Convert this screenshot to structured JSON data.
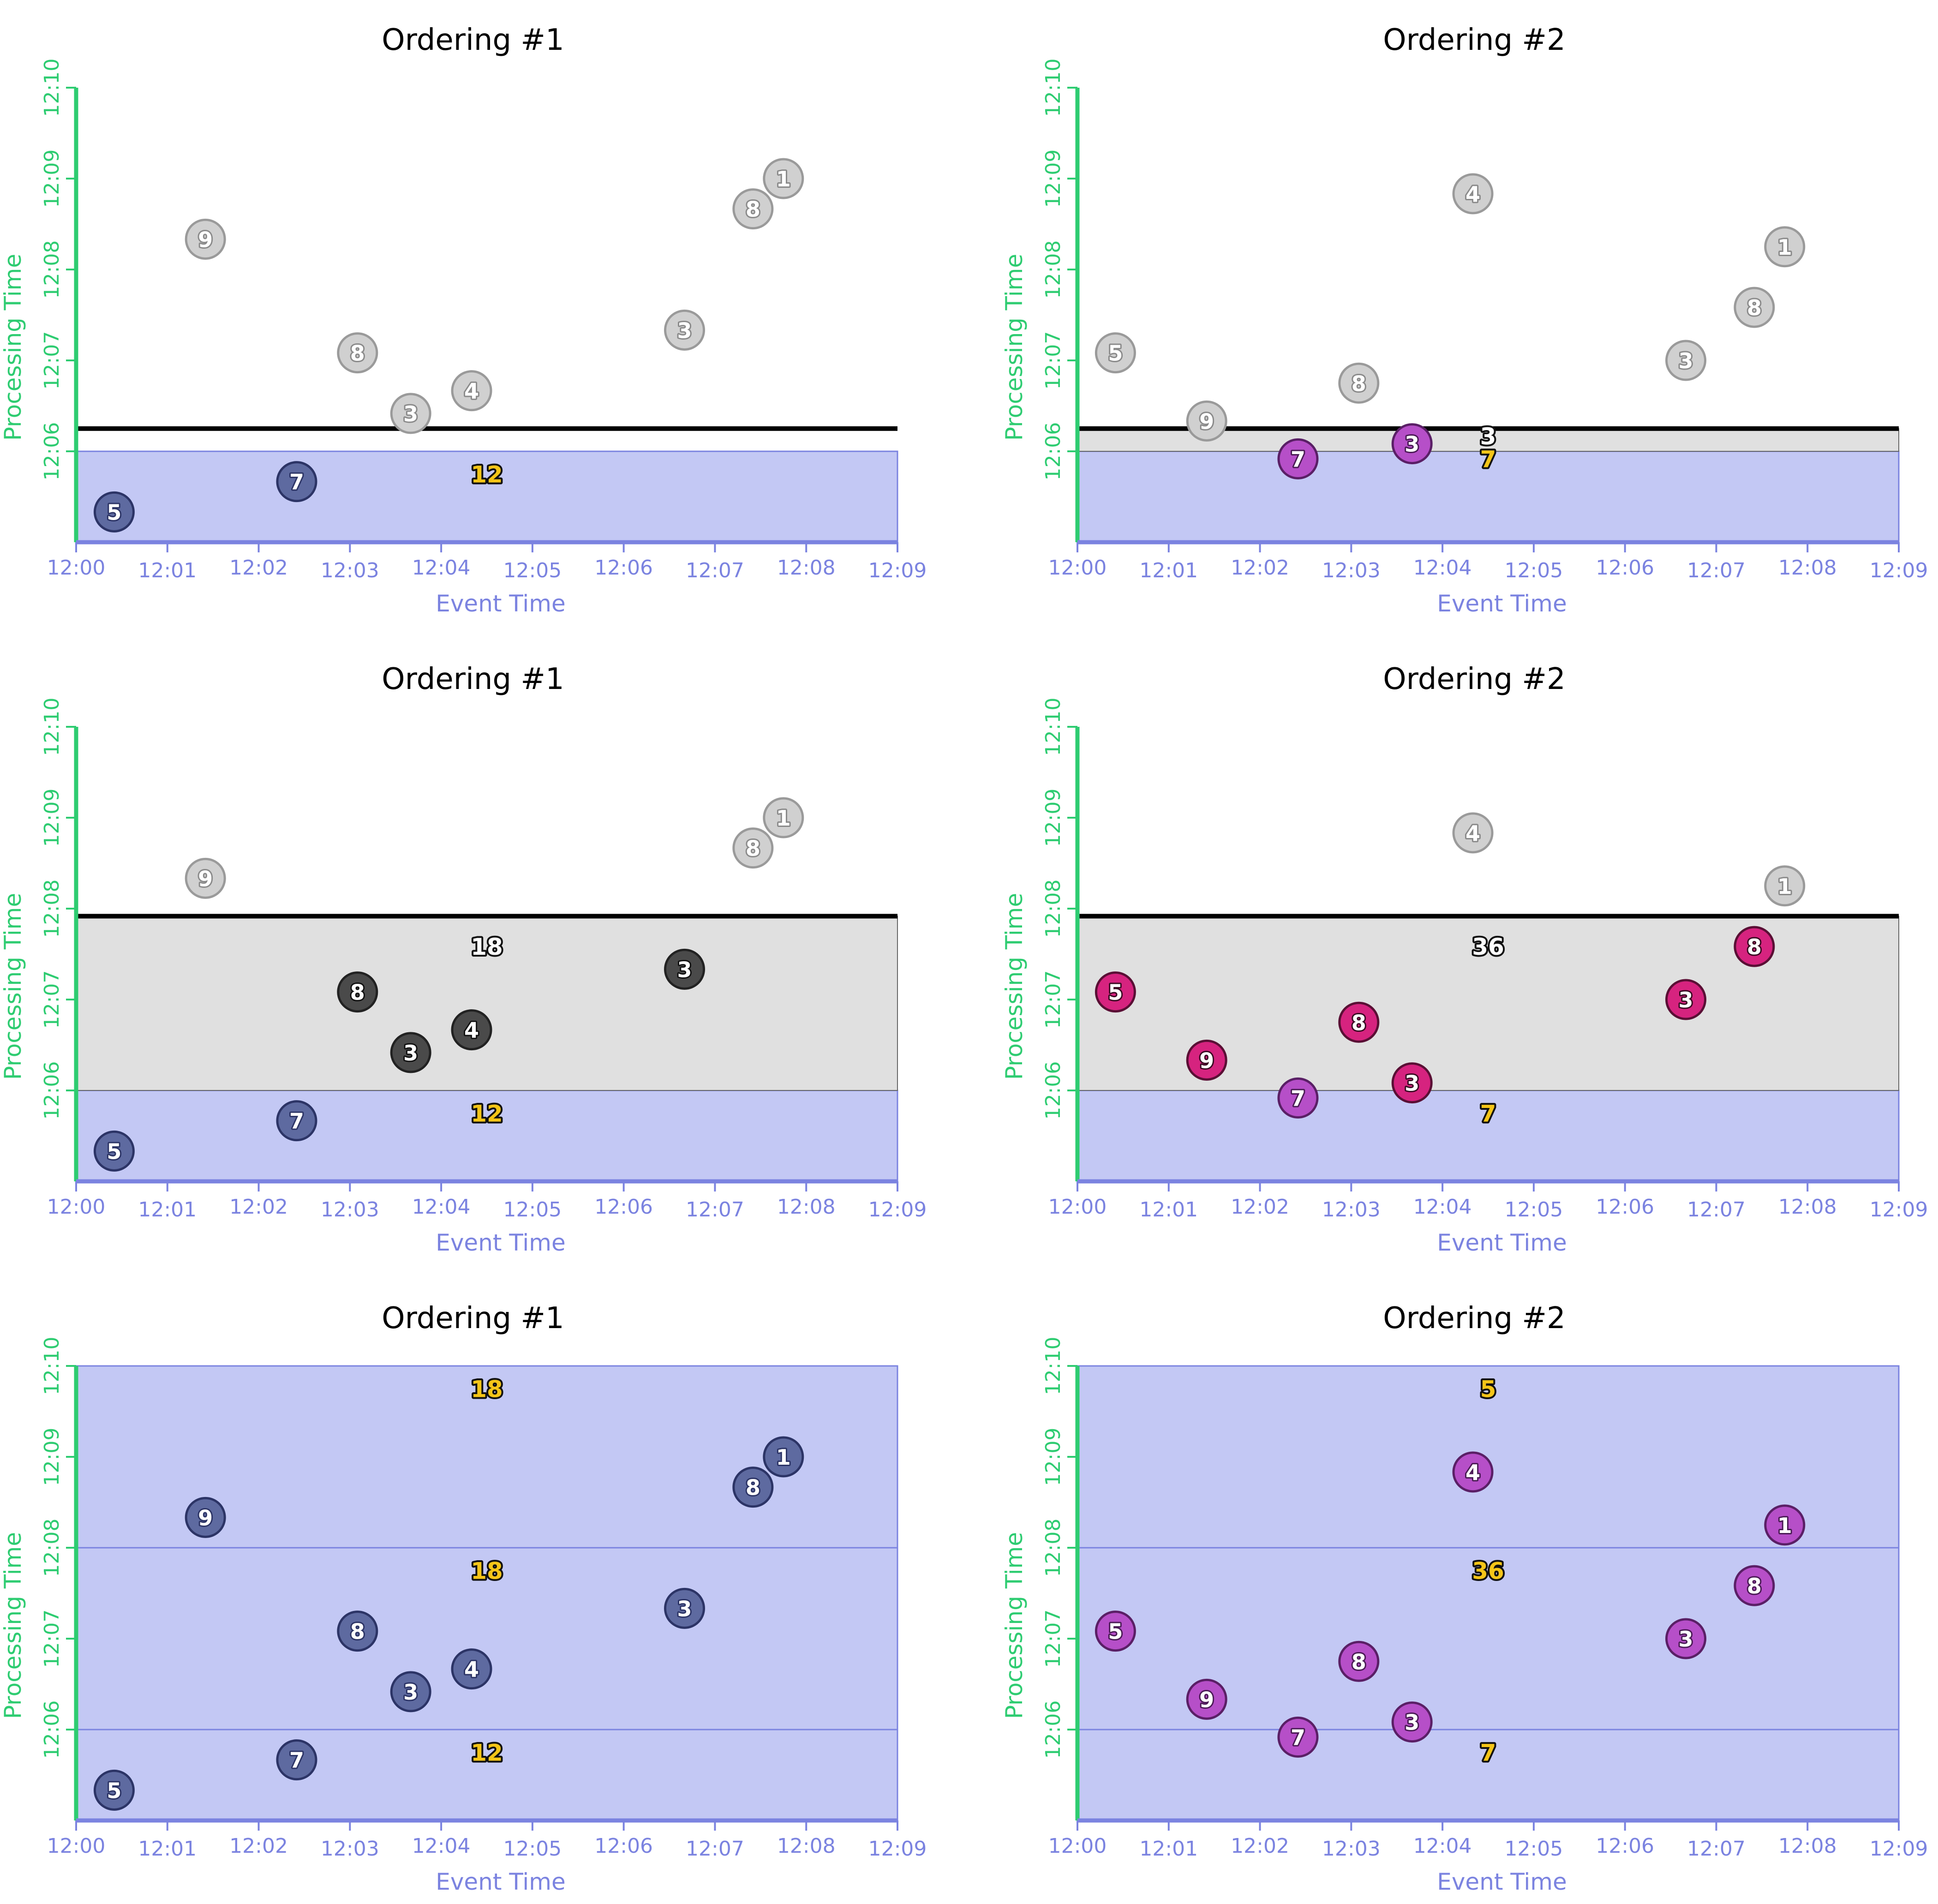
{
  "colors": {
    "pane": "#c3c8f4",
    "pane_line": "#7b83e0",
    "inflight": "#e0e0e0",
    "x_axis": "#7b83e0",
    "y_axis": "#2ecc71",
    "watermark": "#000000",
    "sum_text": "#f5c518",
    "sum_text_light": "#ffffff",
    "point_gray": "#d0d0d0",
    "point_gray_text": "#ffffff",
    "point_dark": "#4a4a4a",
    "point_pane": "#5e6aa0",
    "point_purple": "#b64fc8",
    "point_magenta": "#d6237f"
  },
  "chart_data": [
    {
      "type": "scatter",
      "title": "Ordering #1",
      "xlabel": "Event Time",
      "ylabel": "Processing Time",
      "x_ticks": [
        "12:00",
        "12:01",
        "12:02",
        "12:03",
        "12:04",
        "12:05",
        "12:06",
        "12:07",
        "12:08",
        "12:09"
      ],
      "y_ticks": [
        "12:06",
        "12:07",
        "12:08",
        "12:09",
        "12:10"
      ],
      "xlim": [
        "12:00",
        "12:09"
      ],
      "ylim": [
        "12:05",
        "12:10"
      ],
      "watermark": "12:06:15",
      "panes_fired": [
        {
          "from": "12:05",
          "to": "12:06"
        }
      ],
      "inflight": null,
      "points": [
        {
          "label": "5",
          "x": "12:00:25",
          "y": "12:05:20",
          "style": "pane"
        },
        {
          "label": "9",
          "x": "12:01:25",
          "y": "12:08:20",
          "style": "gray"
        },
        {
          "label": "7",
          "x": "12:02:25",
          "y": "12:05:40",
          "style": "pane"
        },
        {
          "label": "8",
          "x": "12:03:05",
          "y": "12:07:05",
          "style": "gray"
        },
        {
          "label": "3",
          "x": "12:03:40",
          "y": "12:06:25",
          "style": "gray"
        },
        {
          "label": "4",
          "x": "12:04:20",
          "y": "12:06:40",
          "style": "gray"
        },
        {
          "label": "3",
          "x": "12:06:40",
          "y": "12:07:20",
          "style": "gray"
        },
        {
          "label": "8",
          "x": "12:07:25",
          "y": "12:08:40",
          "style": "gray"
        },
        {
          "label": "1",
          "x": "12:07:45",
          "y": "12:09:00",
          "style": "gray"
        }
      ],
      "sums": [
        {
          "label": "12",
          "x": "12:04:30",
          "y": "12:05:45",
          "style": "yellow"
        }
      ]
    },
    {
      "type": "scatter",
      "title": "Ordering #2",
      "xlabel": "Event Time",
      "ylabel": "Processing Time",
      "x_ticks": [
        "12:00",
        "12:01",
        "12:02",
        "12:03",
        "12:04",
        "12:05",
        "12:06",
        "12:07",
        "12:08",
        "12:09"
      ],
      "y_ticks": [
        "12:06",
        "12:07",
        "12:08",
        "12:09",
        "12:10"
      ],
      "xlim": [
        "12:00",
        "12:09"
      ],
      "ylim": [
        "12:05",
        "12:10"
      ],
      "watermark": "12:06:15",
      "panes_fired": [
        {
          "from": "12:05",
          "to": "12:06"
        }
      ],
      "inflight": {
        "from": "12:06",
        "to": "12:06:15"
      },
      "points": [
        {
          "label": "5",
          "x": "12:00:25",
          "y": "12:07:05",
          "style": "gray"
        },
        {
          "label": "9",
          "x": "12:01:25",
          "y": "12:06:20",
          "style": "gray"
        },
        {
          "label": "7",
          "x": "12:02:25",
          "y": "12:05:55",
          "style": "purple"
        },
        {
          "label": "8",
          "x": "12:03:05",
          "y": "12:06:45",
          "style": "gray"
        },
        {
          "label": "3",
          "x": "12:03:40",
          "y": "12:06:05",
          "style": "purple"
        },
        {
          "label": "4",
          "x": "12:04:20",
          "y": "12:08:50",
          "style": "gray"
        },
        {
          "label": "3",
          "x": "12:06:40",
          "y": "12:07:00",
          "style": "gray"
        },
        {
          "label": "8",
          "x": "12:07:25",
          "y": "12:07:35",
          "style": "gray"
        },
        {
          "label": "1",
          "x": "12:07:45",
          "y": "12:08:15",
          "style": "gray"
        }
      ],
      "sums": [
        {
          "label": "3",
          "x": "12:04:30",
          "y": "12:06:10",
          "style": "white"
        },
        {
          "label": "7",
          "x": "12:04:30",
          "y": "12:05:55",
          "style": "yellow"
        }
      ]
    },
    {
      "type": "scatter",
      "title": "Ordering #1",
      "xlabel": "Event Time",
      "ylabel": "Processing Time",
      "x_ticks": [
        "12:00",
        "12:01",
        "12:02",
        "12:03",
        "12:04",
        "12:05",
        "12:06",
        "12:07",
        "12:08",
        "12:09"
      ],
      "y_ticks": [
        "12:06",
        "12:07",
        "12:08",
        "12:09",
        "12:10"
      ],
      "xlim": [
        "12:00",
        "12:09"
      ],
      "ylim": [
        "12:05",
        "12:10"
      ],
      "watermark": "12:07:55",
      "panes_fired": [
        {
          "from": "12:05",
          "to": "12:06"
        }
      ],
      "inflight": {
        "from": "12:06",
        "to": "12:07:55"
      },
      "points": [
        {
          "label": "5",
          "x": "12:00:25",
          "y": "12:05:20",
          "style": "pane"
        },
        {
          "label": "9",
          "x": "12:01:25",
          "y": "12:08:20",
          "style": "gray"
        },
        {
          "label": "7",
          "x": "12:02:25",
          "y": "12:05:40",
          "style": "pane"
        },
        {
          "label": "8",
          "x": "12:03:05",
          "y": "12:07:05",
          "style": "dark"
        },
        {
          "label": "3",
          "x": "12:03:40",
          "y": "12:06:25",
          "style": "dark"
        },
        {
          "label": "4",
          "x": "12:04:20",
          "y": "12:06:40",
          "style": "dark"
        },
        {
          "label": "3",
          "x": "12:06:40",
          "y": "12:07:20",
          "style": "dark"
        },
        {
          "label": "8",
          "x": "12:07:25",
          "y": "12:08:40",
          "style": "gray"
        },
        {
          "label": "1",
          "x": "12:07:45",
          "y": "12:09:00",
          "style": "gray"
        }
      ],
      "sums": [
        {
          "label": "18",
          "x": "12:04:30",
          "y": "12:07:35",
          "style": "white"
        },
        {
          "label": "12",
          "x": "12:04:30",
          "y": "12:05:45",
          "style": "yellow"
        }
      ]
    },
    {
      "type": "scatter",
      "title": "Ordering #2",
      "xlabel": "Event Time",
      "ylabel": "Processing Time",
      "x_ticks": [
        "12:00",
        "12:01",
        "12:02",
        "12:03",
        "12:04",
        "12:05",
        "12:06",
        "12:07",
        "12:08",
        "12:09"
      ],
      "y_ticks": [
        "12:06",
        "12:07",
        "12:08",
        "12:09",
        "12:10"
      ],
      "xlim": [
        "12:00",
        "12:09"
      ],
      "ylim": [
        "12:05",
        "12:10"
      ],
      "watermark": "12:07:55",
      "panes_fired": [
        {
          "from": "12:05",
          "to": "12:06"
        }
      ],
      "inflight": {
        "from": "12:06",
        "to": "12:07:55"
      },
      "points": [
        {
          "label": "5",
          "x": "12:00:25",
          "y": "12:07:05",
          "style": "magenta"
        },
        {
          "label": "9",
          "x": "12:01:25",
          "y": "12:06:20",
          "style": "magenta"
        },
        {
          "label": "7",
          "x": "12:02:25",
          "y": "12:05:55",
          "style": "purple"
        },
        {
          "label": "8",
          "x": "12:03:05",
          "y": "12:06:45",
          "style": "magenta"
        },
        {
          "label": "3",
          "x": "12:03:40",
          "y": "12:06:05",
          "style": "magenta"
        },
        {
          "label": "4",
          "x": "12:04:20",
          "y": "12:08:50",
          "style": "gray"
        },
        {
          "label": "3",
          "x": "12:06:40",
          "y": "12:07:00",
          "style": "magenta"
        },
        {
          "label": "8",
          "x": "12:07:25",
          "y": "12:07:35",
          "style": "magenta"
        },
        {
          "label": "1",
          "x": "12:07:45",
          "y": "12:08:15",
          "style": "gray"
        }
      ],
      "sums": [
        {
          "label": "36",
          "x": "12:04:30",
          "y": "12:07:35",
          "style": "white"
        },
        {
          "label": "7",
          "x": "12:04:30",
          "y": "12:05:45",
          "style": "yellow"
        }
      ]
    },
    {
      "type": "scatter",
      "title": "Ordering #1",
      "xlabel": "Event Time",
      "ylabel": "Processing Time",
      "x_ticks": [
        "12:00",
        "12:01",
        "12:02",
        "12:03",
        "12:04",
        "12:05",
        "12:06",
        "12:07",
        "12:08",
        "12:09"
      ],
      "y_ticks": [
        "12:06",
        "12:07",
        "12:08",
        "12:09",
        "12:10"
      ],
      "xlim": [
        "12:00",
        "12:09"
      ],
      "ylim": [
        "12:05",
        "12:10"
      ],
      "watermark": null,
      "panes_fired": [
        {
          "from": "12:05",
          "to": "12:06"
        },
        {
          "from": "12:06",
          "to": "12:08"
        },
        {
          "from": "12:08",
          "to": "12:10"
        }
      ],
      "inflight": null,
      "points": [
        {
          "label": "5",
          "x": "12:00:25",
          "y": "12:05:20",
          "style": "pane"
        },
        {
          "label": "9",
          "x": "12:01:25",
          "y": "12:08:20",
          "style": "pane"
        },
        {
          "label": "7",
          "x": "12:02:25",
          "y": "12:05:40",
          "style": "pane"
        },
        {
          "label": "8",
          "x": "12:03:05",
          "y": "12:07:05",
          "style": "pane"
        },
        {
          "label": "3",
          "x": "12:03:40",
          "y": "12:06:25",
          "style": "pane"
        },
        {
          "label": "4",
          "x": "12:04:20",
          "y": "12:06:40",
          "style": "pane"
        },
        {
          "label": "3",
          "x": "12:06:40",
          "y": "12:07:20",
          "style": "pane"
        },
        {
          "label": "8",
          "x": "12:07:25",
          "y": "12:08:40",
          "style": "pane"
        },
        {
          "label": "1",
          "x": "12:07:45",
          "y": "12:09:00",
          "style": "pane"
        }
      ],
      "sums": [
        {
          "label": "18",
          "x": "12:04:30",
          "y": "12:09:45",
          "style": "yellow"
        },
        {
          "label": "18",
          "x": "12:04:30",
          "y": "12:07:45",
          "style": "yellow"
        },
        {
          "label": "12",
          "x": "12:04:30",
          "y": "12:05:45",
          "style": "yellow"
        }
      ]
    },
    {
      "type": "scatter",
      "title": "Ordering #2",
      "xlabel": "Event Time",
      "ylabel": "Processing Time",
      "x_ticks": [
        "12:00",
        "12:01",
        "12:02",
        "12:03",
        "12:04",
        "12:05",
        "12:06",
        "12:07",
        "12:08",
        "12:09"
      ],
      "y_ticks": [
        "12:06",
        "12:07",
        "12:08",
        "12:09",
        "12:10"
      ],
      "xlim": [
        "12:00",
        "12:09"
      ],
      "ylim": [
        "12:05",
        "12:10"
      ],
      "watermark": null,
      "panes_fired": [
        {
          "from": "12:05",
          "to": "12:06"
        },
        {
          "from": "12:06",
          "to": "12:08"
        },
        {
          "from": "12:08",
          "to": "12:10"
        }
      ],
      "inflight": null,
      "points": [
        {
          "label": "5",
          "x": "12:00:25",
          "y": "12:07:05",
          "style": "purple"
        },
        {
          "label": "9",
          "x": "12:01:25",
          "y": "12:06:20",
          "style": "purple"
        },
        {
          "label": "7",
          "x": "12:02:25",
          "y": "12:05:55",
          "style": "purple"
        },
        {
          "label": "8",
          "x": "12:03:05",
          "y": "12:06:45",
          "style": "purple"
        },
        {
          "label": "3",
          "x": "12:03:40",
          "y": "12:06:05",
          "style": "purple"
        },
        {
          "label": "4",
          "x": "12:04:20",
          "y": "12:08:50",
          "style": "purple"
        },
        {
          "label": "3",
          "x": "12:06:40",
          "y": "12:07:00",
          "style": "purple"
        },
        {
          "label": "8",
          "x": "12:07:25",
          "y": "12:07:35",
          "style": "purple"
        },
        {
          "label": "1",
          "x": "12:07:45",
          "y": "12:08:15",
          "style": "purple"
        }
      ],
      "sums": [
        {
          "label": "5",
          "x": "12:04:30",
          "y": "12:09:45",
          "style": "yellow"
        },
        {
          "label": "36",
          "x": "12:04:30",
          "y": "12:07:45",
          "style": "yellow"
        },
        {
          "label": "7",
          "x": "12:04:30",
          "y": "12:05:45",
          "style": "yellow"
        }
      ]
    }
  ]
}
